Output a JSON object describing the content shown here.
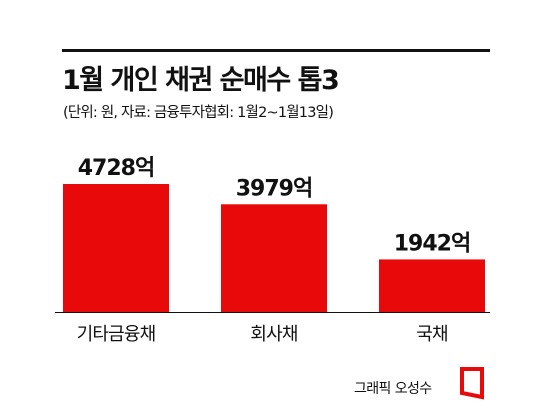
{
  "title": "1월 개인 채권 순매수 톱3",
  "subtitle": "(단위: 원, 자료: 금융투자협회: 1월2~1월13일)",
  "credit": "그래픽 오성수",
  "colors": {
    "bar": "#e80a0a",
    "text": "#111111",
    "axis": "#111111"
  },
  "chart_data": {
    "type": "bar",
    "categories": [
      "기타금융채",
      "회사채",
      "국채"
    ],
    "values": [
      4728,
      3979,
      1942
    ],
    "data_labels": [
      "4728억",
      "3979억",
      "1942억"
    ],
    "title": "1월 개인 채권 순매수 톱3",
    "xlabel": "",
    "ylabel": "",
    "ylim": [
      0,
      4728
    ],
    "grid": false
  }
}
